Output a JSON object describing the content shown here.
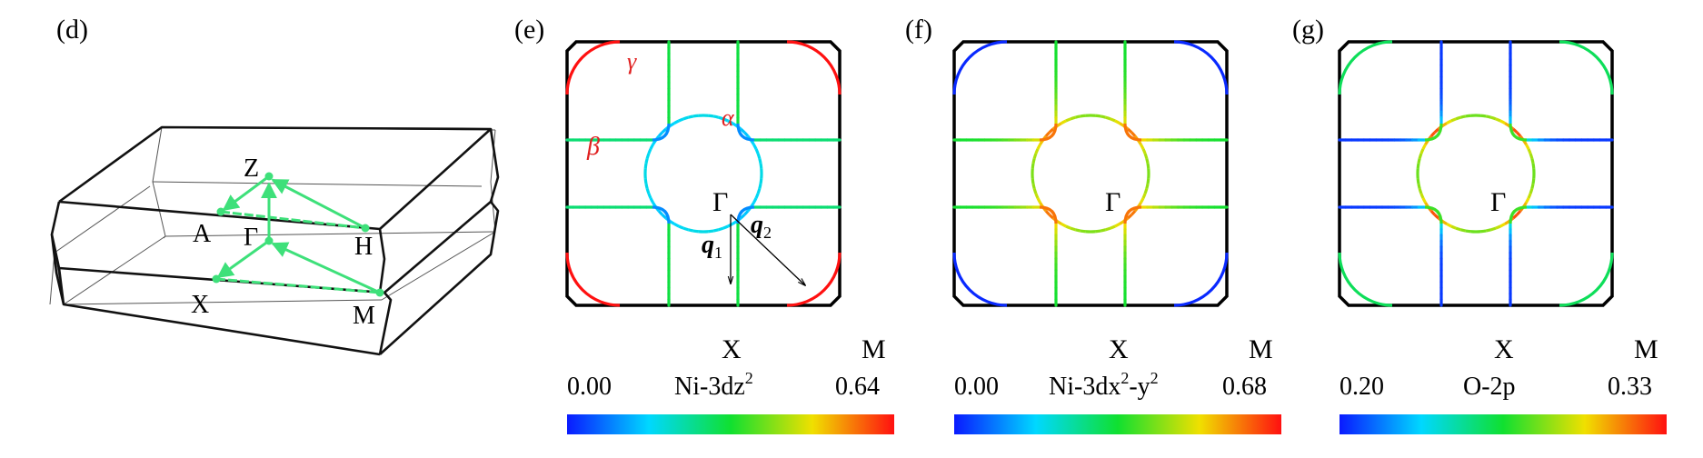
{
  "colors": {
    "frame": "#000000",
    "bz_thin": "#555555",
    "arrow_green": "#3ee07a",
    "label_red": "#e02020",
    "colormap": [
      "#0a1aff",
      "#00d8ff",
      "#10e030",
      "#f0e000",
      "#ff1010"
    ]
  },
  "panel_d": {
    "label": "(d)",
    "points": {
      "Z": "Z",
      "A": "A",
      "G": "Γ",
      "H": "H",
      "X": "X",
      "M": "M"
    }
  },
  "panel_e": {
    "label": "(e)",
    "center_label": "Γ",
    "x_label": "X",
    "m_label": "M",
    "band_labels": {
      "gamma": "γ",
      "beta": "β",
      "alpha": "α"
    },
    "q1": "q",
    "q1_sub": "1",
    "q2": "q",
    "q2_sub": "2",
    "colorbar": {
      "min": "0.00",
      "max": "0.64",
      "title_base": "Ni-3dz",
      "title_sup": "2"
    },
    "projection": {
      "gamma": 1.0,
      "x_pocket": 0.45,
      "circle": 0.25,
      "vertical_wall": 0.45,
      "horizontal_wall": 0.35
    }
  },
  "panel_f": {
    "label": "(f)",
    "center_label": "Γ",
    "x_label": "X",
    "m_label": "M",
    "colorbar": {
      "min": "0.00",
      "max": "0.68",
      "title_part1": "Ni-3dx",
      "title_sup1": "2",
      "title_part2": "-y",
      "title_sup2": "2"
    },
    "projection": {
      "gamma": 0.0,
      "circle": 0.8,
      "wall": 0.55
    }
  },
  "panel_g": {
    "label": "(g)",
    "center_label": "Γ",
    "x_label": "X",
    "m_label": "M",
    "colorbar": {
      "min": "0.20",
      "max": "0.33",
      "title": "O-2p"
    },
    "projection": {
      "gamma": 0.45,
      "circle": 0.7,
      "wall": 0.05,
      "x_pocket": 0.45
    }
  }
}
